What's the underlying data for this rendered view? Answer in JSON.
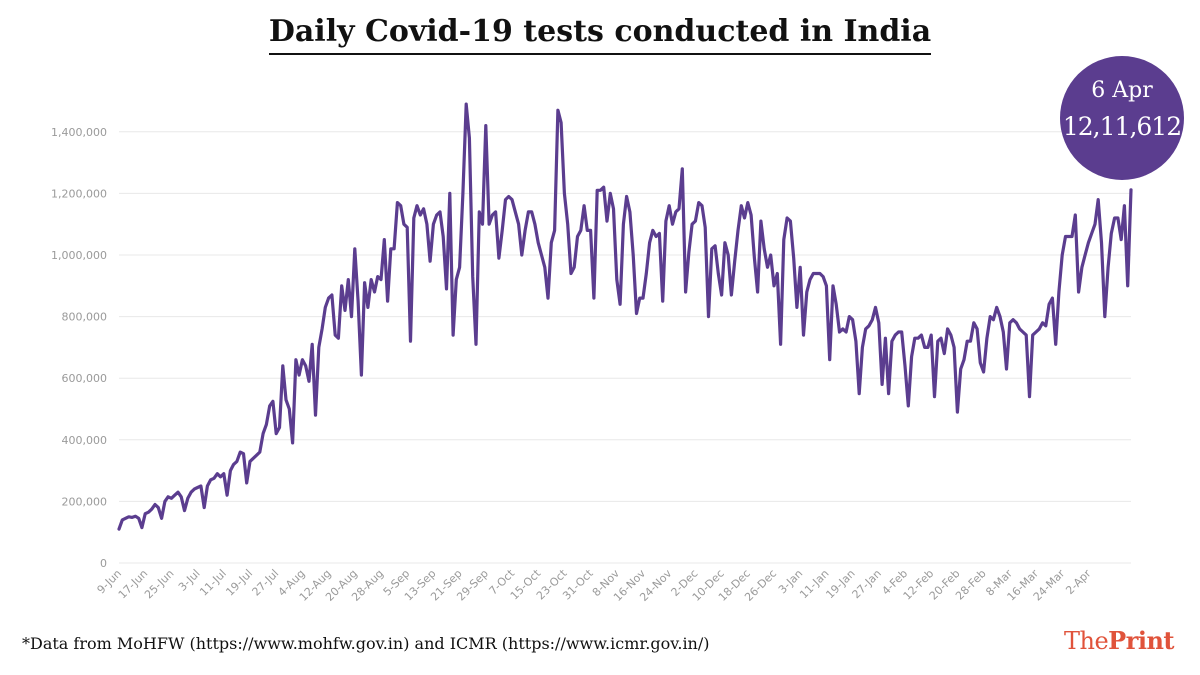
{
  "title": "Daily Covid-19 tests conducted in India",
  "callout": {
    "date": "6 Apr",
    "value": "12,11,612"
  },
  "source": "*Data from MoHFW (https://www.mohfw.gov.in) and ICMR (https://www.icmr.gov.in/)",
  "logo": {
    "part1": "The",
    "part2": "Print"
  },
  "colors": {
    "line": "#5b3d8f",
    "callout_bg": "#5b3d8f",
    "logo": "#e0533b",
    "grid": "#e8e8e8",
    "tick": "#9a9a9a"
  },
  "chart_data": {
    "type": "line",
    "title": "Daily Covid-19 tests conducted in India",
    "ylim": [
      0,
      1500000
    ],
    "yticks": [
      0,
      200000,
      400000,
      600000,
      800000,
      1000000,
      1200000,
      1400000
    ],
    "ytick_labels": [
      "0",
      "200,000",
      "400,000",
      "600,000",
      "800,000",
      "1,000,000",
      "1,200,000",
      "1,400,000"
    ],
    "xtick_labels": [
      "9-Jun",
      "17-Jun",
      "25-Jun",
      "3-Jul",
      "11-Jul",
      "19-Jul",
      "27-Jul",
      "4-Aug",
      "12-Aug",
      "20-Aug",
      "28-Aug",
      "5-Sep",
      "13-Sep",
      "21-Sep",
      "29-Sep",
      "7-Oct",
      "15-Oct",
      "23-Oct",
      "31-Oct",
      "8-Nov",
      "16-Nov",
      "24-Nov",
      "2-Dec",
      "10-Dec",
      "18-Dec",
      "26-Dec",
      "3-Jan",
      "11-Jan",
      "19-Jan",
      "27-Jan",
      "4-Feb",
      "12-Feb",
      "20-Feb",
      "28-Feb",
      "8-Mar",
      "16-Mar",
      "24-Mar",
      "2-Apr"
    ],
    "grid": true,
    "series": [
      {
        "values": [
          110000,
          140000,
          145000,
          150000,
          148000,
          152000,
          145000,
          115000,
          160000,
          165000,
          175000,
          190000,
          180000,
          145000,
          200000,
          215000,
          210000,
          220000,
          230000,
          215000,
          170000,
          210000,
          230000,
          240000,
          245000,
          250000,
          180000,
          250000,
          270000,
          275000,
          290000,
          280000,
          290000,
          220000,
          300000,
          320000,
          330000,
          360000,
          355000,
          260000,
          330000,
          340000,
          350000,
          360000,
          420000,
          450000,
          510000,
          525000,
          420000,
          440000,
          640000,
          530000,
          500000,
          390000,
          660000,
          610000,
          660000,
          640000,
          590000,
          710000,
          480000,
          700000,
          760000,
          830000,
          860000,
          870000,
          740000,
          730000,
          900000,
          820000,
          920000,
          800000,
          1020000,
          850000,
          610000,
          910000,
          830000,
          920000,
          880000,
          930000,
          920000,
          1050000,
          850000,
          1020000,
          1020000,
          1170000,
          1160000,
          1100000,
          1090000,
          720000,
          1120000,
          1160000,
          1130000,
          1150000,
          1100000,
          980000,
          1100000,
          1130000,
          1140000,
          1060000,
          890000,
          1200000,
          740000,
          920000,
          960000,
          1200000,
          1490000,
          1380000,
          930000,
          710000,
          1140000,
          1100000,
          1420000,
          1100000,
          1130000,
          1140000,
          990000,
          1080000,
          1180000,
          1190000,
          1180000,
          1140000,
          1100000,
          1000000,
          1080000,
          1140000,
          1140000,
          1100000,
          1040000,
          1000000,
          960000,
          860000,
          1040000,
          1080000,
          1470000,
          1430000,
          1200000,
          1100000,
          940000,
          960000,
          1060000,
          1080000,
          1160000,
          1080000,
          1080000,
          860000,
          1210000,
          1210000,
          1220000,
          1110000,
          1200000,
          1150000,
          920000,
          840000,
          1100000,
          1190000,
          1140000,
          1000000,
          810000,
          860000,
          860000,
          940000,
          1040000,
          1080000,
          1060000,
          1070000,
          850000,
          1110000,
          1160000,
          1100000,
          1140000,
          1150000,
          1280000,
          880000,
          1010000,
          1100000,
          1110000,
          1170000,
          1160000,
          1090000,
          800000,
          1020000,
          1030000,
          940000,
          870000,
          1040000,
          1000000,
          870000,
          980000,
          1080000,
          1160000,
          1120000,
          1170000,
          1130000,
          990000,
          880000,
          1110000,
          1020000,
          960000,
          1000000,
          900000,
          940000,
          710000,
          1050000,
          1120000,
          1110000,
          990000,
          830000,
          960000,
          740000,
          880000,
          920000,
          940000,
          940000,
          940000,
          930000,
          900000,
          660000,
          900000,
          840000,
          750000,
          760000,
          750000,
          800000,
          790000,
          720000,
          550000,
          700000,
          760000,
          770000,
          790000,
          830000,
          780000,
          580000,
          730000,
          550000,
          720000,
          740000,
          750000,
          750000,
          640000,
          510000,
          670000,
          730000,
          730000,
          740000,
          700000,
          700000,
          740000,
          540000,
          720000,
          730000,
          680000,
          760000,
          740000,
          700000,
          490000,
          630000,
          660000,
          720000,
          720000,
          780000,
          760000,
          650000,
          620000,
          730000,
          800000,
          790000,
          830000,
          800000,
          750000,
          630000,
          780000,
          790000,
          780000,
          760000,
          750000,
          740000,
          540000,
          740000,
          750000,
          760000,
          780000,
          770000,
          840000,
          860000,
          710000,
          880000,
          1000000,
          1060000,
          1060000,
          1060000,
          1130000,
          880000,
          960000,
          1000000,
          1040000,
          1070000,
          1100000,
          1180000,
          1040000,
          800000,
          960000,
          1070000,
          1120000,
          1120000,
          1050000,
          1160000,
          900000,
          1211612
        ]
      }
    ]
  }
}
